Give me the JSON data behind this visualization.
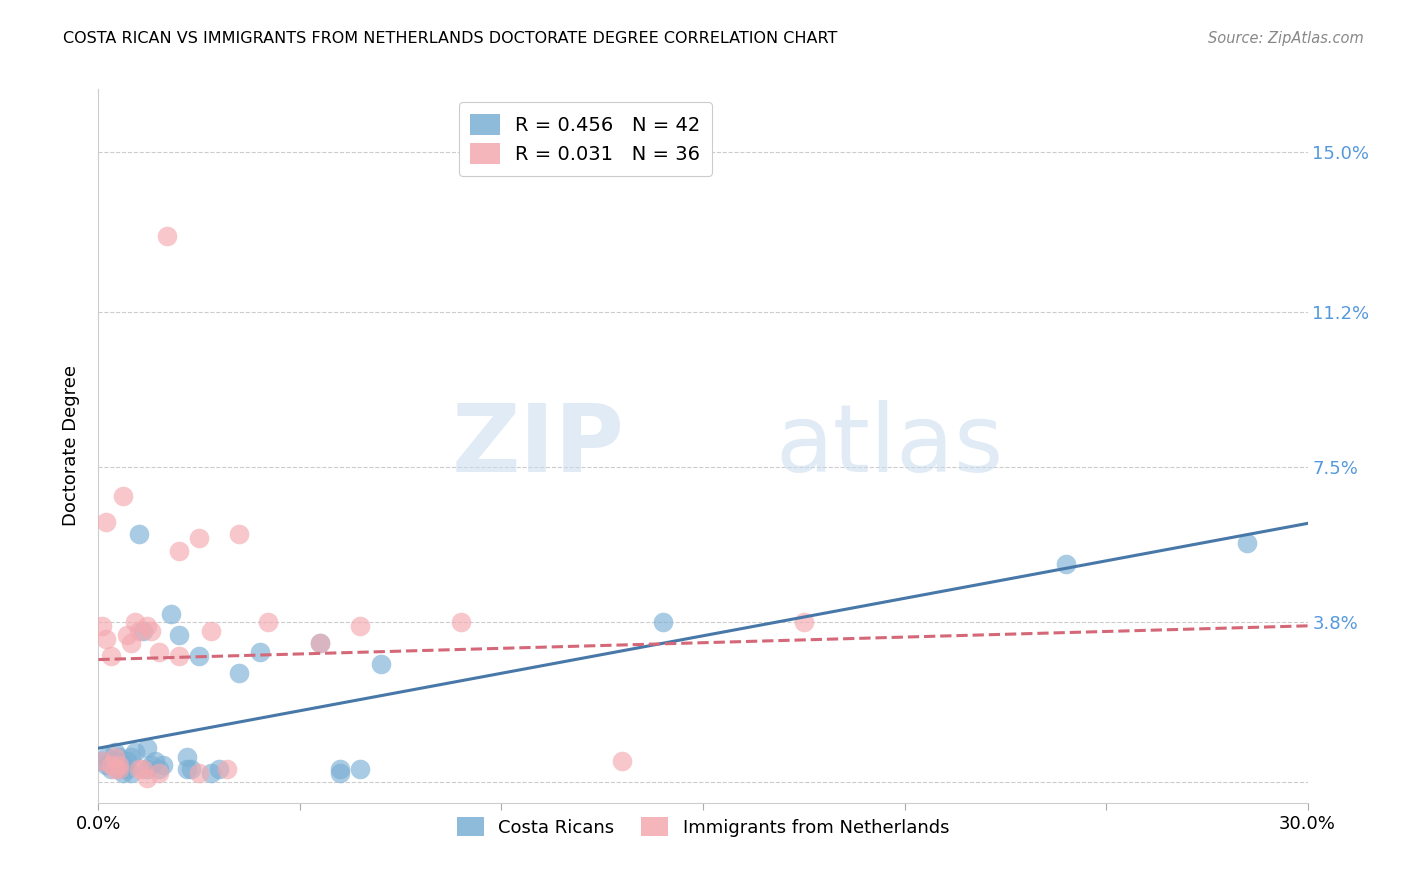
{
  "title": "COSTA RICAN VS IMMIGRANTS FROM NETHERLANDS DOCTORATE DEGREE CORRELATION CHART",
  "source": "Source: ZipAtlas.com",
  "ylabel": "Doctorate Degree",
  "xlim": [
    0.0,
    0.3
  ],
  "ylim": [
    -0.005,
    0.165
  ],
  "yticks": [
    0.0,
    0.038,
    0.075,
    0.112,
    0.15
  ],
  "ytick_labels_right": [
    "",
    "3.8%",
    "7.5%",
    "11.2%",
    "15.0%"
  ],
  "xticks": [
    0.0,
    0.05,
    0.1,
    0.15,
    0.2,
    0.25,
    0.3
  ],
  "xtick_labels": [
    "0.0%",
    "",
    "",
    "",
    "",
    "",
    "30.0%"
  ],
  "watermark_zip": "ZIP",
  "watermark_atlas": "atlas",
  "legend_entries": [
    {
      "label": "R = 0.456   N = 42",
      "color": "#7BAFD4"
    },
    {
      "label": "R = 0.031   N = 36",
      "color": "#F4A9B0"
    }
  ],
  "legend_bottom": [
    "Costa Ricans",
    "Immigrants from Netherlands"
  ],
  "blue_color": "#7BAFD4",
  "pink_color": "#F4A9B0",
  "blue_line_color": "#4878A8",
  "pink_line_color": "#D46878",
  "grid_color": "#CCCCCC",
  "axis_label_color": "#5599DD",
  "blue_points": [
    [
      0.001,
      0.005
    ],
    [
      0.002,
      0.004
    ],
    [
      0.002,
      0.006
    ],
    [
      0.003,
      0.005
    ],
    [
      0.003,
      0.003
    ],
    [
      0.004,
      0.005
    ],
    [
      0.004,
      0.007
    ],
    [
      0.005,
      0.003
    ],
    [
      0.005,
      0.006
    ],
    [
      0.006,
      0.004
    ],
    [
      0.006,
      0.002
    ],
    [
      0.007,
      0.005
    ],
    [
      0.007,
      0.003
    ],
    [
      0.008,
      0.006
    ],
    [
      0.008,
      0.002
    ],
    [
      0.009,
      0.007
    ],
    [
      0.01,
      0.059
    ],
    [
      0.011,
      0.036
    ],
    [
      0.012,
      0.008
    ],
    [
      0.012,
      0.003
    ],
    [
      0.013,
      0.004
    ],
    [
      0.014,
      0.005
    ],
    [
      0.015,
      0.003
    ],
    [
      0.016,
      0.004
    ],
    [
      0.018,
      0.04
    ],
    [
      0.02,
      0.035
    ],
    [
      0.022,
      0.003
    ],
    [
      0.022,
      0.006
    ],
    [
      0.023,
      0.003
    ],
    [
      0.025,
      0.03
    ],
    [
      0.028,
      0.002
    ],
    [
      0.03,
      0.003
    ],
    [
      0.035,
      0.026
    ],
    [
      0.04,
      0.031
    ],
    [
      0.055,
      0.033
    ],
    [
      0.06,
      0.003
    ],
    [
      0.06,
      0.002
    ],
    [
      0.065,
      0.003
    ],
    [
      0.07,
      0.028
    ],
    [
      0.14,
      0.038
    ],
    [
      0.24,
      0.052
    ],
    [
      0.285,
      0.057
    ]
  ],
  "pink_points": [
    [
      0.001,
      0.005
    ],
    [
      0.001,
      0.037
    ],
    [
      0.002,
      0.034
    ],
    [
      0.002,
      0.062
    ],
    [
      0.003,
      0.03
    ],
    [
      0.003,
      0.004
    ],
    [
      0.004,
      0.006
    ],
    [
      0.004,
      0.003
    ],
    [
      0.005,
      0.004
    ],
    [
      0.005,
      0.003
    ],
    [
      0.006,
      0.068
    ],
    [
      0.007,
      0.035
    ],
    [
      0.008,
      0.033
    ],
    [
      0.009,
      0.038
    ],
    [
      0.01,
      0.036
    ],
    [
      0.01,
      0.003
    ],
    [
      0.011,
      0.003
    ],
    [
      0.012,
      0.037
    ],
    [
      0.012,
      0.001
    ],
    [
      0.013,
      0.036
    ],
    [
      0.015,
      0.031
    ],
    [
      0.015,
      0.002
    ],
    [
      0.017,
      0.13
    ],
    [
      0.02,
      0.055
    ],
    [
      0.02,
      0.03
    ],
    [
      0.025,
      0.058
    ],
    [
      0.025,
      0.002
    ],
    [
      0.028,
      0.036
    ],
    [
      0.032,
      0.003
    ],
    [
      0.035,
      0.059
    ],
    [
      0.042,
      0.038
    ],
    [
      0.055,
      0.033
    ],
    [
      0.065,
      0.037
    ],
    [
      0.09,
      0.038
    ],
    [
      0.13,
      0.005
    ],
    [
      0.175,
      0.038
    ]
  ]
}
